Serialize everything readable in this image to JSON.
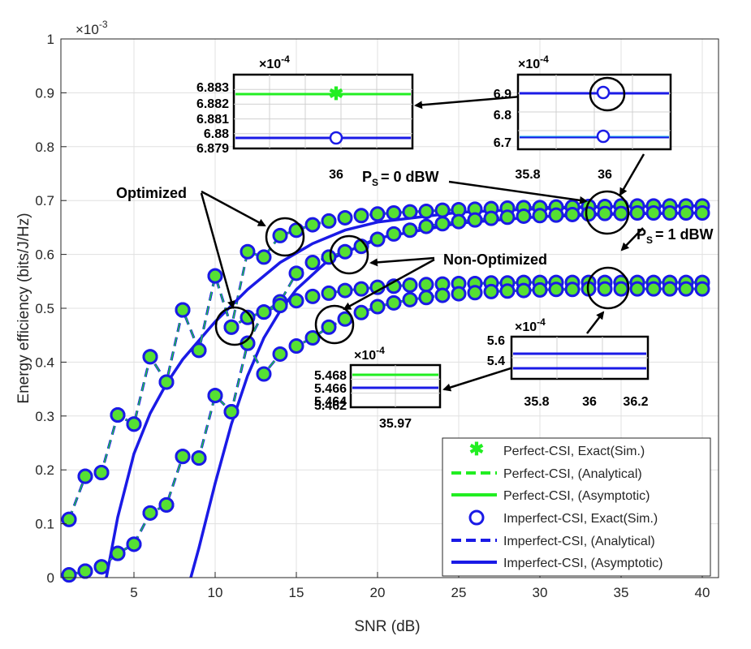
{
  "chart_data": {
    "type": "line",
    "xlabel": "SNR (dB)",
    "ylabel": "Energy efficiency (bits/J/Hz)",
    "xlim": [
      0.5,
      41
    ],
    "ylim": [
      0,
      0.001
    ],
    "xticks": [
      "5",
      "10",
      "15",
      "20",
      "25",
      "30",
      "35",
      "40"
    ],
    "yticks": [
      "0",
      "0.1",
      "0.2",
      "0.3",
      "0.4",
      "0.5",
      "0.6",
      "0.7",
      "0.8",
      "0.9",
      "1"
    ],
    "yexp": "×10",
    "yexp_power": "-3",
    "grid": true,
    "legend_position": "bottom-right",
    "colors": {
      "perfect": "#22ee22",
      "imperfect": "#1a1ae6",
      "marker_fill": "#55e033",
      "axis": "#262626",
      "grid": "#e0e0e0"
    },
    "legend": [
      {
        "label": "Perfect-CSI, Exact(Sim.)",
        "style": "star",
        "color": "#22ee22"
      },
      {
        "label": "Perfect-CSI, (Analytical)",
        "style": "dashed",
        "color": "#22ee22"
      },
      {
        "label": "Perfect-CSI, (Asymptotic)",
        "style": "solid",
        "color": "#22ee22"
      },
      {
        "label": "Imperfect-CSI, Exact(Sim.)",
        "style": "circle",
        "color": "#1a1ae6"
      },
      {
        "label": "Imperfect-CSI, (Analytical)",
        "style": "dashed",
        "color": "#1a1ae6"
      },
      {
        "label": "Imperfect-CSI, (Asymptotic)",
        "style": "solid",
        "color": "#1a1ae6"
      }
    ],
    "snr_markers": [
      1,
      2,
      3,
      4,
      5,
      6,
      7,
      8,
      9,
      10,
      11,
      12,
      13,
      14,
      15,
      16,
      17,
      18,
      19,
      20,
      21,
      22,
      23,
      24,
      25,
      26,
      27,
      28,
      29,
      30,
      31,
      32,
      33,
      34,
      35,
      36,
      37,
      38,
      39,
      40
    ],
    "series": [
      {
        "group": "PS = 0 dBW, Optimized",
        "exact": [
          0.000108,
          0.000188,
          0.000195,
          0.000302,
          0.000285,
          0.00041,
          0.000363,
          0.000497,
          0.000422,
          0.00056,
          0.000465,
          0.000605,
          0.000595,
          0.000635,
          0.000645,
          0.000655,
          0.000662,
          0.000668,
          0.000672,
          0.000675,
          0.000677,
          0.000679,
          0.00068,
          0.000682,
          0.000683,
          0.000684,
          0.000685,
          0.000686,
          0.000687,
          0.000687,
          0.000688,
          0.000688,
          0.000689,
          0.000689,
          0.00069,
          0.00069,
          0.00069,
          0.00069,
          0.00069,
          0.00069
        ],
        "asymptotic": [
          [
            3.3,
            0
          ],
          [
            4,
            0.000112
          ],
          [
            5,
            0.00023
          ],
          [
            6,
            0.000305
          ],
          [
            7,
            0.00036
          ],
          [
            8,
            0.000405
          ],
          [
            9,
            0.00044
          ],
          [
            10,
            0.000475
          ],
          [
            12,
            0.000535
          ],
          [
            14,
            0.000585
          ],
          [
            16,
            0.00062
          ],
          [
            18,
            0.000645
          ],
          [
            20,
            0.00066
          ],
          [
            25,
            0.000678
          ],
          [
            30,
            0.000685
          ],
          [
            35,
            0.000689
          ],
          [
            40,
            0.00069
          ]
        ]
      },
      {
        "group": "PS = 0 dBW, Non-Optimized",
        "exact": [
          5e-06,
          1.2e-05,
          2e-05,
          4.5e-05,
          6.2e-05,
          0.00012,
          0.000135,
          0.000225,
          0.000222,
          0.000338,
          0.000308,
          0.000435,
          0.000493,
          0.000512,
          0.000565,
          0.000585,
          0.000595,
          0.000605,
          0.000615,
          0.000628,
          0.000638,
          0.000645,
          0.000652,
          0.000657,
          0.000661,
          0.000664,
          0.000667,
          0.000669,
          0.000671,
          0.000672,
          0.000673,
          0.000674,
          0.000675,
          0.000676,
          0.000676,
          0.000677,
          0.000677,
          0.000677,
          0.000677,
          0.000677
        ],
        "asymptotic": [
          [
            8.5,
            0
          ],
          [
            9,
            5.5e-05
          ],
          [
            10,
            0.000175
          ],
          [
            11,
            0.000285
          ],
          [
            12,
            0.000375
          ],
          [
            13,
            0.000445
          ],
          [
            14,
            0.000495
          ],
          [
            15,
            0.000535
          ],
          [
            17,
            0.00059
          ],
          [
            20,
            0.00063
          ],
          [
            25,
            0.000658
          ],
          [
            30,
            0.00067
          ],
          [
            35,
            0.000675
          ],
          [
            40,
            0.000677
          ]
        ]
      },
      {
        "group": "PS = 1 dBW, Optimized",
        "exact": [
          0.000108,
          0.000188,
          0.000195,
          0.000302,
          0.000285,
          0.00041,
          0.000363,
          0.000497,
          0.000422,
          0.00056,
          0.000465,
          0.000483,
          0.000493,
          0.000505,
          0.000514,
          0.000522,
          0.000528,
          0.000533,
          0.000536,
          0.000539,
          0.000541,
          0.000543,
          0.000544,
          0.000545,
          0.000546,
          0.000546,
          0.000547,
          0.000547,
          0.000548,
          0.000548,
          0.000548,
          0.000548,
          0.000548,
          0.000548,
          0.000548,
          0.000548,
          0.000548,
          0.000548,
          0.000548,
          0.000548
        ]
      },
      {
        "group": "PS = 1 dBW, Non-Optimized",
        "exact": [
          5e-06,
          1.2e-05,
          2e-05,
          4.5e-05,
          6.2e-05,
          0.00012,
          0.000135,
          0.000225,
          0.000222,
          0.000338,
          0.000308,
          0.000435,
          0.000378,
          0.000415,
          0.00043,
          0.000445,
          0.000465,
          0.00048,
          0.000492,
          0.000503,
          0.00051,
          0.000516,
          0.00052,
          0.000524,
          0.000527,
          0.000529,
          0.000531,
          0.000532,
          0.000533,
          0.000534,
          0.000535,
          0.000535,
          0.000536,
          0.000536,
          0.000536,
          0.000536,
          0.000536,
          0.000536,
          0.000536,
          0.000536
        ]
      }
    ],
    "annotations": {
      "optimized": "Optimized",
      "non_optimized": "Non-Optimized",
      "ps0": "P",
      "ps0_sub": "S",
      "ps0_rest": "= 0 dBW",
      "ps1": "P",
      "ps1_sub": "S",
      "ps1_rest": "= 1 dBW"
    },
    "insets": [
      {
        "id": "inset-1",
        "exp": "×10",
        "power": "-4",
        "yticks": [
          "6.883",
          "6.882",
          "6.881",
          "6.88",
          "6.879"
        ],
        "xticks": [
          "36"
        ],
        "values": {
          "perfect": 6.8825,
          "imperfect": 6.8797
        }
      },
      {
        "id": "inset-2",
        "exp": "×10",
        "power": "-4",
        "yticks": [
          "6.9",
          "6.8",
          "6.7"
        ],
        "xticks": [
          "35.8",
          "36"
        ],
        "values": {
          "perfect": 6.9,
          "imperfect": 6.72
        }
      },
      {
        "id": "inset-3",
        "exp": "×10",
        "power": "-4",
        "yticks": [
          "5.468",
          "5.466",
          "5.464",
          "5.462"
        ],
        "xticks": [
          "35.97"
        ],
        "values": {
          "perfect": 5.4675,
          "imperfect": 5.4645
        }
      },
      {
        "id": "inset-4",
        "exp": "×10",
        "power": "-4",
        "yticks": [
          "5.6",
          "5.4"
        ],
        "xticks": [
          "35.8",
          "36",
          "36.2"
        ],
        "values": {
          "perfect": 5.48,
          "imperfect": 5.36
        }
      }
    ]
  }
}
